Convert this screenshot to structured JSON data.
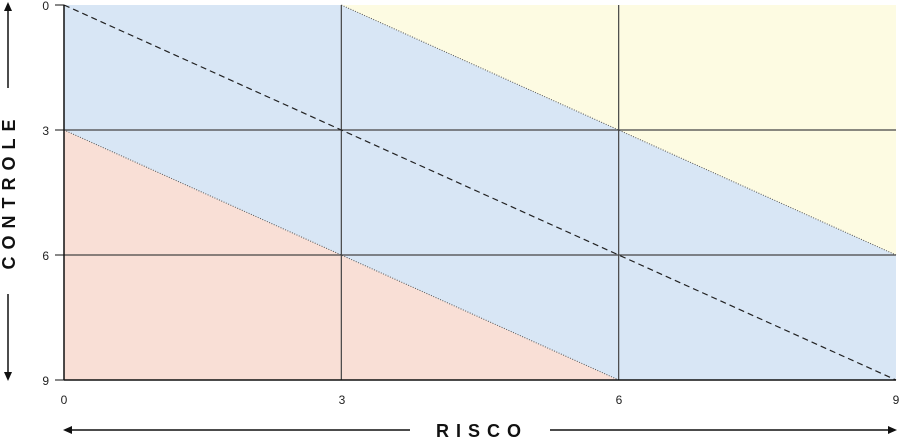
{
  "x_axis": {
    "title": "RISCO",
    "ticks": [
      "0",
      "3",
      "6",
      "9"
    ]
  },
  "y_axis": {
    "title": "CONTROLE",
    "ticks": [
      "0",
      "3",
      "6",
      "9"
    ]
  },
  "zones": [
    {
      "id": "low",
      "color": "#f9dfd6",
      "polygon": [
        [
          0,
          3
        ],
        [
          6,
          9
        ],
        [
          0,
          9
        ]
      ]
    },
    {
      "id": "mid",
      "color": "#d8e6f5",
      "polygon": [
        [
          0,
          0
        ],
        [
          3,
          0
        ],
        [
          9,
          6
        ],
        [
          9,
          9
        ],
        [
          6,
          9
        ],
        [
          0,
          3
        ]
      ]
    },
    {
      "id": "high",
      "color": "#fdfbe2",
      "polygon": [
        [
          3,
          0
        ],
        [
          9,
          0
        ],
        [
          9,
          6
        ]
      ]
    }
  ],
  "grid_values": [
    3,
    6
  ],
  "dashed_line": [
    [
      0,
      0
    ],
    [
      9,
      9
    ]
  ],
  "colors": {
    "grid": "#444444",
    "axis": "#111111"
  }
}
